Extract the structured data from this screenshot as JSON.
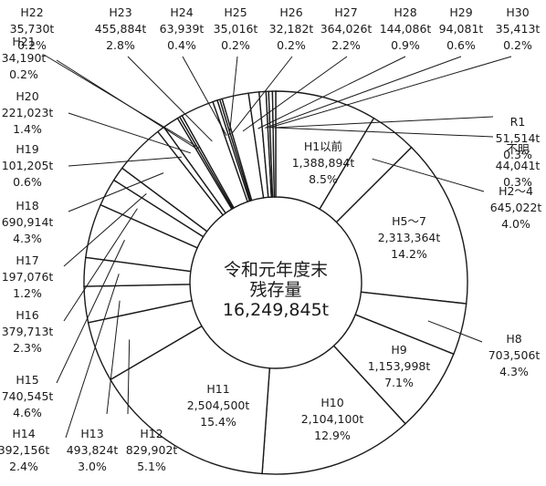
{
  "chart_data": {
    "type": "pie",
    "donut": true,
    "center_text": [
      "令和元年度末",
      "残存量",
      "16,249,845t"
    ],
    "colors": {
      "fill": "#ffffff",
      "stroke": "#1a1a1a"
    },
    "slices": [
      {
        "name": "H1以前",
        "value": "1,388,894t",
        "percent": "8.5%",
        "v": 1388894
      },
      {
        "name": "H2～4",
        "value": "645,022t",
        "percent": "4.0%",
        "v": 645022
      },
      {
        "name": "H5～7",
        "value": "2,313,364t",
        "percent": "14.2%",
        "v": 2313364
      },
      {
        "name": "H8",
        "value": "703,506t",
        "percent": "4.3%",
        "v": 703506
      },
      {
        "name": "H9",
        "value": "1,153,998t",
        "percent": "7.1%",
        "v": 1153998
      },
      {
        "name": "H10",
        "value": "2,104,100t",
        "percent": "12.9%",
        "v": 2104100
      },
      {
        "name": "H11",
        "value": "2,504,500t",
        "percent": "15.4%",
        "v": 2504500
      },
      {
        "name": "H12",
        "value": "829,902t",
        "percent": "5.1%",
        "v": 829902
      },
      {
        "name": "H13",
        "value": "493,824t",
        "percent": "3.0%",
        "v": 493824
      },
      {
        "name": "H14",
        "value": "392,156t",
        "percent": "2.4%",
        "v": 392156
      },
      {
        "name": "H15",
        "value": "740,545t",
        "percent": "4.6%",
        "v": 740545
      },
      {
        "name": "H16",
        "value": "379,713t",
        "percent": "2.3%",
        "v": 379713
      },
      {
        "name": "H17",
        "value": "197,076t",
        "percent": "1.2%",
        "v": 197076
      },
      {
        "name": "H18",
        "value": "690,914t",
        "percent": "4.3%",
        "v": 690914
      },
      {
        "name": "H19",
        "value": "101,205t",
        "percent": "0.6%",
        "v": 101205
      },
      {
        "name": "H20",
        "value": "221,023t",
        "percent": "1.4%",
        "v": 221023
      },
      {
        "name": "H21",
        "value": "34,190t",
        "percent": "0.2%",
        "v": 34190
      },
      {
        "name": "H22",
        "value": "35,730t",
        "percent": "0.2%",
        "v": 35730
      },
      {
        "name": "H23",
        "value": "455,884t",
        "percent": "2.8%",
        "v": 455884
      },
      {
        "name": "H24",
        "value": "63,939t",
        "percent": "0.4%",
        "v": 63939
      },
      {
        "name": "H25",
        "value": "35,016t",
        "percent": "0.2%",
        "v": 35016
      },
      {
        "name": "H26",
        "value": "32,182t",
        "percent": "0.2%",
        "v": 32182
      },
      {
        "name": "H27",
        "value": "364,026t",
        "percent": "2.2%",
        "v": 364026
      },
      {
        "name": "H28",
        "value": "144,086t",
        "percent": "0.9%",
        "v": 144086
      },
      {
        "name": "H29",
        "value": "94,081t",
        "percent": "0.6%",
        "v": 94081
      },
      {
        "name": "H30",
        "value": "35,413t",
        "percent": "0.2%",
        "v": 35413
      },
      {
        "name": "R1",
        "value": "51,514t",
        "percent": "0.3%",
        "v": 51514
      },
      {
        "name": "不明",
        "value": "44,041t",
        "percent": "0.3%",
        "v": 44041
      }
    ]
  }
}
